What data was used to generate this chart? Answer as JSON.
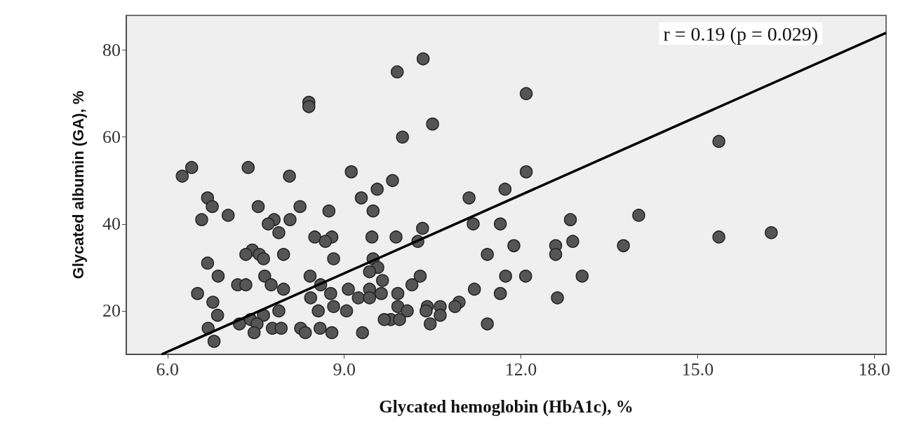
{
  "chart_data": {
    "type": "scatter",
    "xlabel": "Glycated hemoglobin (HbA1c), %",
    "ylabel": "Glycated albumin (GA), %",
    "annotations": [
      "r = 0.19 (p = 0.029)"
    ],
    "xlim": [
      5.3,
      18.2
    ],
    "xticks": [
      {
        "value": 6,
        "label": "6.0"
      },
      {
        "value": 9,
        "label": "9.0"
      },
      {
        "value": 12,
        "label": "12.0"
      },
      {
        "value": 15,
        "label": "15.0"
      },
      {
        "value": 18,
        "label": "18.0"
      }
    ],
    "ylim": [
      10,
      88
    ],
    "yticks": [
      20,
      40,
      60,
      80
    ],
    "grid": false,
    "marker": "circle",
    "series": [
      {
        "color": "#555555",
        "x": [
          6.41,
          6.25,
          7.37,
          8.07,
          9.12,
          9.82,
          9.56,
          9.29,
          9.49,
          6.68,
          6.76,
          6.58,
          7.03,
          7.54,
          8.25,
          8.74,
          7.81,
          8.08,
          7.71,
          7.89,
          8.5,
          8.79,
          8.68,
          9.47,
          9.88,
          7.44,
          7.33,
          7.56,
          7.63,
          7.97,
          8.82,
          9.49,
          9.57,
          9.43,
          9.65,
          6.68,
          6.86,
          7.19,
          7.33,
          7.65,
          7.76,
          7.97,
          8.42,
          8.6,
          6.51,
          6.77,
          8.43,
          8.77,
          9.07,
          9.43,
          9.63,
          9.24,
          9.43,
          9.91,
          8.82,
          9.04,
          9.91,
          8.56,
          6.85,
          7.63,
          7.89,
          7.41,
          7.22,
          7.52,
          6.69,
          7.78,
          7.93,
          8.26,
          8.59,
          7.47,
          8.34,
          8.79,
          9.31,
          9.79,
          9.68,
          6.79,
          8.4,
          8.4,
          9.9,
          10.34,
          9.99,
          10.5,
          12.09,
          15.36,
          12.09,
          11.12,
          11.73,
          10.33,
          10.25,
          11.19,
          11.65,
          12.84,
          14.0,
          11.88,
          12.59,
          12.88,
          12.59,
          13.74,
          11.43,
          10.29,
          11.74,
          12.08,
          13.04,
          10.15,
          11.21,
          11.65,
          12.62,
          10.07,
          10.41,
          10.63,
          10.95,
          10.88,
          10.63,
          10.39,
          9.94,
          10.46,
          11.43,
          15.36,
          16.25
        ],
        "values": [
          53,
          51,
          53,
          51,
          52,
          50,
          48,
          46,
          43,
          46,
          44,
          41,
          42,
          44,
          44,
          43,
          41,
          41,
          40,
          38,
          37,
          37,
          36,
          37,
          37,
          34,
          33,
          33,
          32,
          33,
          32,
          32,
          30,
          29,
          27,
          31,
          28,
          26,
          26,
          28,
          26,
          25,
          28,
          26,
          24,
          22,
          23,
          24,
          25,
          25,
          24,
          23,
          23,
          24,
          21,
          20,
          21,
          20,
          19,
          19,
          20,
          18,
          17,
          17,
          16,
          16,
          16,
          16,
          16,
          15,
          15,
          15,
          15,
          18,
          18,
          13,
          68,
          67,
          75,
          78,
          60,
          63,
          70,
          59,
          52,
          46,
          48,
          39,
          36,
          40,
          40,
          41,
          42,
          35,
          35,
          36,
          33,
          35,
          33,
          28,
          28,
          28,
          28,
          26,
          25,
          24,
          23,
          20,
          21,
          21,
          22,
          21,
          19,
          20,
          18,
          17,
          17,
          37,
          38
        ]
      },
      {
        "type": "line",
        "color": "#000000",
        "marker": "none",
        "line_style": "solid",
        "x": [
          5.9,
          18.2
        ],
        "values": [
          10,
          84
        ]
      }
    ]
  }
}
